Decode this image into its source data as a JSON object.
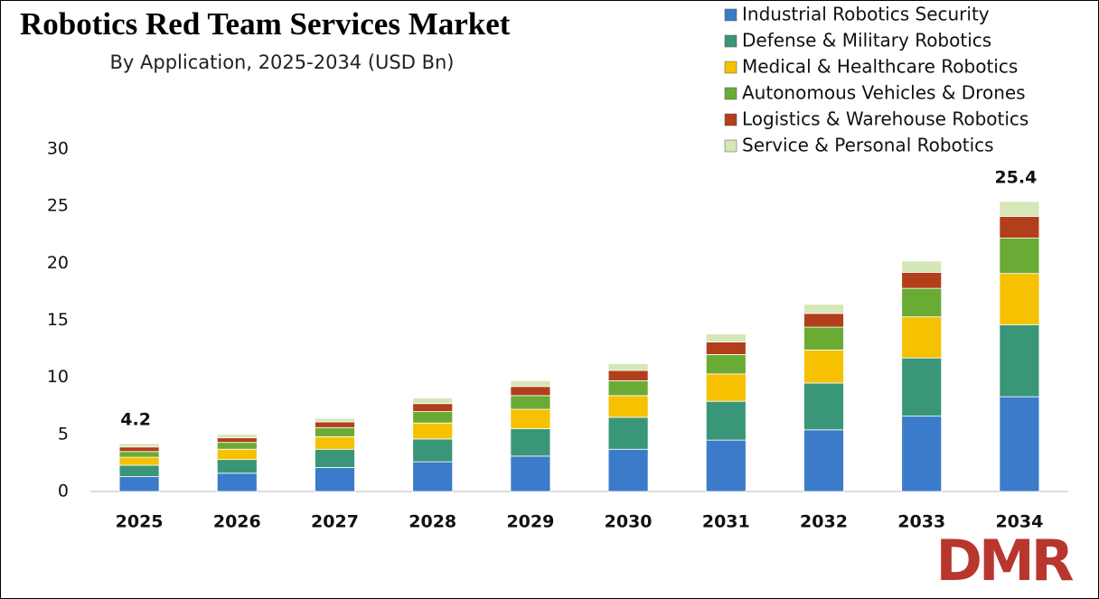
{
  "chart_data": {
    "type": "stacked_bar",
    "title": "Robotics Red Team Services Market",
    "subtitle": "By Application, 2025-2034 (USD Bn)",
    "categories": [
      "2025",
      "2026",
      "2027",
      "2028",
      "2029",
      "2030",
      "2031",
      "2032",
      "2033",
      "2034"
    ],
    "series": [
      {
        "name": "Industrial Robotics Security",
        "color": "#3b7bc9",
        "values": [
          1.3,
          1.6,
          2.1,
          2.6,
          3.1,
          3.7,
          4.5,
          5.4,
          6.6,
          8.3
        ]
      },
      {
        "name": "Defense & Military Robotics",
        "color": "#3a9678",
        "values": [
          1.0,
          1.2,
          1.6,
          2.0,
          2.4,
          2.8,
          3.4,
          4.1,
          5.1,
          6.3
        ]
      },
      {
        "name": "Medical & Healthcare Robotics",
        "color": "#f6c100",
        "values": [
          0.7,
          0.9,
          1.1,
          1.4,
          1.7,
          1.9,
          2.4,
          2.9,
          3.6,
          4.5
        ]
      },
      {
        "name": "Autonomous Vehicles & Drones",
        "color": "#6aab35",
        "values": [
          0.5,
          0.6,
          0.8,
          1.0,
          1.2,
          1.3,
          1.7,
          2.0,
          2.5,
          3.1
        ]
      },
      {
        "name": "Logistics & Warehouse Robotics",
        "color": "#b23f1a",
        "values": [
          0.4,
          0.4,
          0.5,
          0.7,
          0.8,
          0.9,
          1.1,
          1.2,
          1.4,
          1.9
        ]
      },
      {
        "name": "Service & Personal Robotics",
        "color": "#d5e7b6",
        "values": [
          0.3,
          0.3,
          0.3,
          0.5,
          0.5,
          0.6,
          0.7,
          0.8,
          1.0,
          1.3
        ]
      }
    ],
    "annotations": [
      {
        "category": "2025",
        "value": 4.2
      },
      {
        "category": "2034",
        "value": 25.4
      }
    ],
    "ylim": [
      0,
      30
    ],
    "yticks": [
      0,
      5,
      10,
      15,
      20,
      25,
      30
    ],
    "grid": false,
    "legend": "top-right",
    "logo": "DMR"
  }
}
